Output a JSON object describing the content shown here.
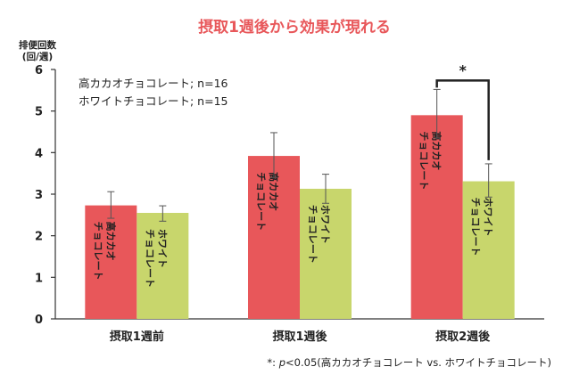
{
  "chart_data": {
    "type": "bar",
    "title": "摂取1週後から効果が現れる",
    "ylabel_lines": [
      "排便回数",
      "(回/週)"
    ],
    "ylim": [
      0,
      6
    ],
    "yticks": [
      "0",
      "1",
      "2",
      "3",
      "4",
      "5",
      "6"
    ],
    "categories": [
      "摂取1週前",
      "摂取1週後",
      "摂取2週後"
    ],
    "series": [
      {
        "name": "高カカオチョコレート",
        "legend": "高カカオチョコレート; n=16",
        "color": "#e8575a",
        "values": [
          2.73,
          3.92,
          4.9
        ],
        "err_low": [
          2.42,
          3.4,
          4.35
        ],
        "err_high": [
          3.06,
          4.48,
          5.52
        ]
      },
      {
        "name": "ホワイトチョコレート",
        "legend": "ホワイトチョコレート; n=15",
        "color": "#c8d66c",
        "values": [
          2.55,
          3.13,
          3.31
        ],
        "err_low": [
          2.35,
          2.78,
          2.93
        ],
        "err_high": [
          2.72,
          3.48,
          3.73
        ]
      }
    ],
    "bar_labels": [
      [
        "高カカオ",
        "チョコレート"
      ],
      [
        "ホワイト",
        "チョコレート"
      ]
    ],
    "significance": {
      "category_index": 2,
      "marker": "*"
    },
    "footnote": "*: p<0.05(高カカオチョコレート vs. ホワイトチョコレート)",
    "grid": false,
    "legend_position": "top-left"
  }
}
